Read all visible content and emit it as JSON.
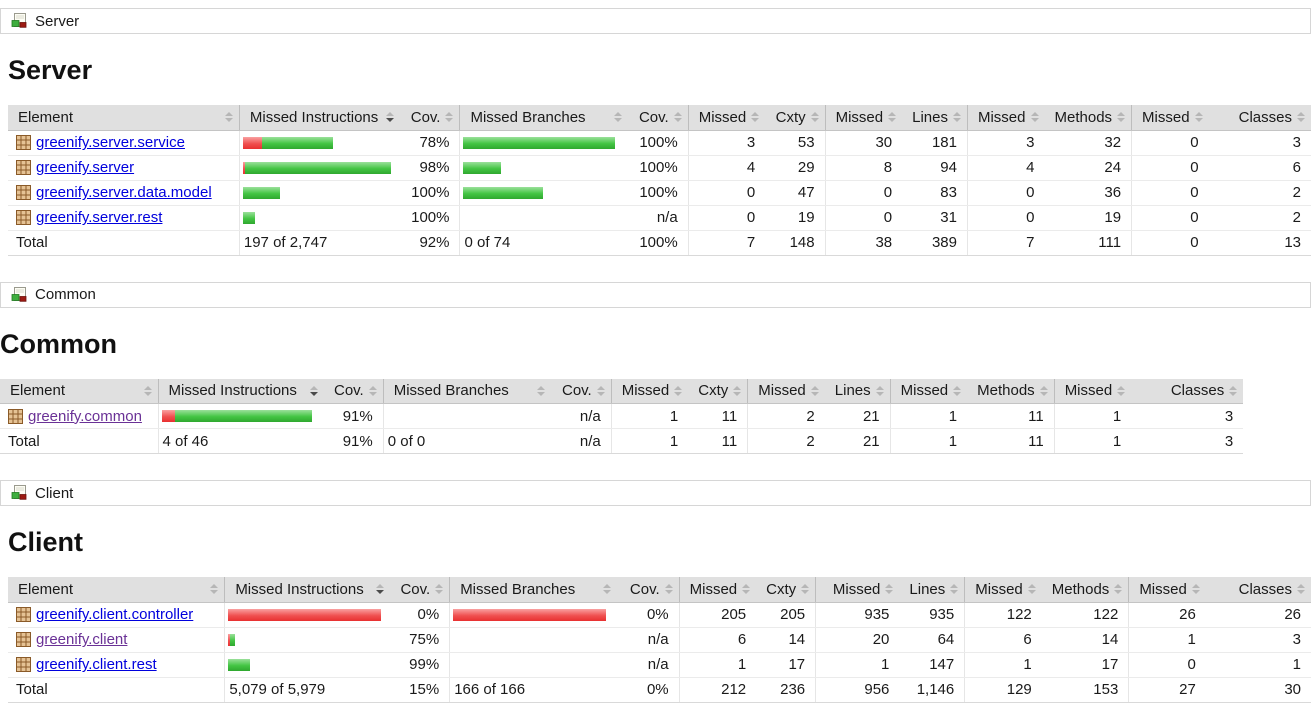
{
  "colors": {
    "link_blue": "#0000dd",
    "link_visited": "#6a3196",
    "bar_green": "#44c544",
    "bar_red": "#f05050",
    "header_bg": "#e0e0e0"
  },
  "sections": [
    {
      "breadcrumb": {
        "label": "Server",
        "icon": "report-group-icon"
      },
      "heading": "Server",
      "table": {
        "headers": [
          "Element",
          "Missed Instructions",
          "Cov.",
          "Missed Branches",
          "Cov.",
          "Missed",
          "Cxty",
          "Missed",
          "Lines",
          "Missed",
          "Methods",
          "Missed",
          "Classes"
        ],
        "sorted_column": "Missed Instructions",
        "rows": [
          {
            "element": "greenify.server.service",
            "icon": "package-icon",
            "instr_bar": {
              "red": 19,
              "green": 71
            },
            "instr_cov": "78%",
            "branch_bar": {
              "red": 0,
              "green": 152
            },
            "branch_cov": "100%",
            "missed_cxty": "3",
            "cxty": "53",
            "missed_lines": "30",
            "lines": "181",
            "missed_methods": "3",
            "methods": "32",
            "missed_classes": "0",
            "classes": "3"
          },
          {
            "element": "greenify.server",
            "icon": "package-icon",
            "instr_bar": {
              "red": 2,
              "green": 146
            },
            "instr_cov": "98%",
            "branch_bar": {
              "red": 0,
              "green": 38
            },
            "branch_cov": "100%",
            "missed_cxty": "4",
            "cxty": "29",
            "missed_lines": "8",
            "lines": "94",
            "missed_methods": "4",
            "methods": "24",
            "missed_classes": "0",
            "classes": "6"
          },
          {
            "element": "greenify.server.data.model",
            "icon": "package-icon",
            "instr_bar": {
              "red": 0,
              "green": 37
            },
            "instr_cov": "100%",
            "branch_bar": {
              "red": 0,
              "green": 80
            },
            "branch_cov": "100%",
            "missed_cxty": "0",
            "cxty": "47",
            "missed_lines": "0",
            "lines": "83",
            "missed_methods": "0",
            "methods": "36",
            "missed_classes": "0",
            "classes": "2"
          },
          {
            "element": "greenify.server.rest",
            "icon": "package-icon",
            "instr_bar": {
              "red": 0,
              "green": 12
            },
            "instr_cov": "100%",
            "branch_bar": {
              "red": 0,
              "green": 0
            },
            "branch_cov": "n/a",
            "missed_cxty": "0",
            "cxty": "19",
            "missed_lines": "0",
            "lines": "31",
            "missed_methods": "0",
            "methods": "19",
            "missed_classes": "0",
            "classes": "2"
          }
        ],
        "total": {
          "label": "Total",
          "missed_instructions": "197 of 2,747",
          "instr_cov": "92%",
          "missed_branches": "0 of 74",
          "branch_cov": "100%",
          "missed_cxty": "7",
          "cxty": "148",
          "missed_lines": "38",
          "lines": "389",
          "missed_methods": "7",
          "methods": "111",
          "missed_classes": "0",
          "classes": "13"
        }
      }
    },
    {
      "breadcrumb": {
        "label": "Common",
        "icon": "report-group-icon"
      },
      "heading": "Common",
      "table": {
        "headers": [
          "Element",
          "Missed Instructions",
          "Cov.",
          "Missed Branches",
          "Cov.",
          "Missed",
          "Cxty",
          "Missed",
          "Lines",
          "Missed",
          "Methods",
          "Missed",
          "Classes"
        ],
        "sorted_column": "Missed Instructions",
        "rows": [
          {
            "element": "greenify.common",
            "icon": "package-icon",
            "instr_bar": {
              "red": 13,
              "green": 137
            },
            "instr_cov": "91%",
            "branch_bar": {
              "red": 0,
              "green": 0
            },
            "branch_cov": "n/a",
            "missed_cxty": "1",
            "cxty": "11",
            "missed_lines": "2",
            "lines": "21",
            "missed_methods": "1",
            "methods": "11",
            "missed_classes": "1",
            "classes": "3"
          }
        ],
        "total": {
          "label": "Total",
          "missed_instructions": "4 of 46",
          "instr_cov": "91%",
          "missed_branches": "0 of 0",
          "branch_cov": "n/a",
          "missed_cxty": "1",
          "cxty": "11",
          "missed_lines": "2",
          "lines": "21",
          "missed_methods": "1",
          "methods": "11",
          "missed_classes": "1",
          "classes": "3"
        }
      }
    },
    {
      "breadcrumb": {
        "label": "Client",
        "icon": "report-group-icon"
      },
      "heading": "Client",
      "table": {
        "headers": [
          "Element",
          "Missed Instructions",
          "Cov.",
          "Missed Branches",
          "Cov.",
          "Missed",
          "Cxty",
          "Missed",
          "Lines",
          "Missed",
          "Methods",
          "Missed",
          "Classes"
        ],
        "sorted_column": "Missed Instructions",
        "rows": [
          {
            "element": "greenify.client.controller",
            "icon": "package-icon",
            "instr_bar": {
              "red": 153,
              "green": 0
            },
            "instr_cov": "0%",
            "branch_bar": {
              "red": 153,
              "green": 0
            },
            "branch_cov": "0%",
            "missed_cxty": "205",
            "cxty": "205",
            "missed_lines": "935",
            "lines": "935",
            "missed_methods": "122",
            "methods": "122",
            "missed_classes": "26",
            "classes": "26"
          },
          {
            "element": "greenify.client",
            "icon": "package-icon",
            "instr_bar": {
              "red": 2,
              "green": 5
            },
            "instr_cov": "75%",
            "branch_bar": {
              "red": 0,
              "green": 0
            },
            "branch_cov": "n/a",
            "missed_cxty": "6",
            "cxty": "14",
            "missed_lines": "20",
            "lines": "64",
            "missed_methods": "6",
            "methods": "14",
            "missed_classes": "1",
            "classes": "3"
          },
          {
            "element": "greenify.client.rest",
            "icon": "package-icon",
            "instr_bar": {
              "red": 0,
              "green": 22
            },
            "instr_cov": "99%",
            "branch_bar": {
              "red": 0,
              "green": 0
            },
            "branch_cov": "n/a",
            "missed_cxty": "1",
            "cxty": "17",
            "missed_lines": "1",
            "lines": "147",
            "missed_methods": "1",
            "methods": "17",
            "missed_classes": "0",
            "classes": "1"
          }
        ],
        "total": {
          "label": "Total",
          "missed_instructions": "5,079 of 5,979",
          "instr_cov": "15%",
          "missed_branches": "166 of 166",
          "branch_cov": "0%",
          "missed_cxty": "212",
          "cxty": "236",
          "missed_lines": "956",
          "lines": "1,146",
          "missed_methods": "129",
          "methods": "153",
          "missed_classes": "27",
          "classes": "30"
        }
      }
    }
  ]
}
